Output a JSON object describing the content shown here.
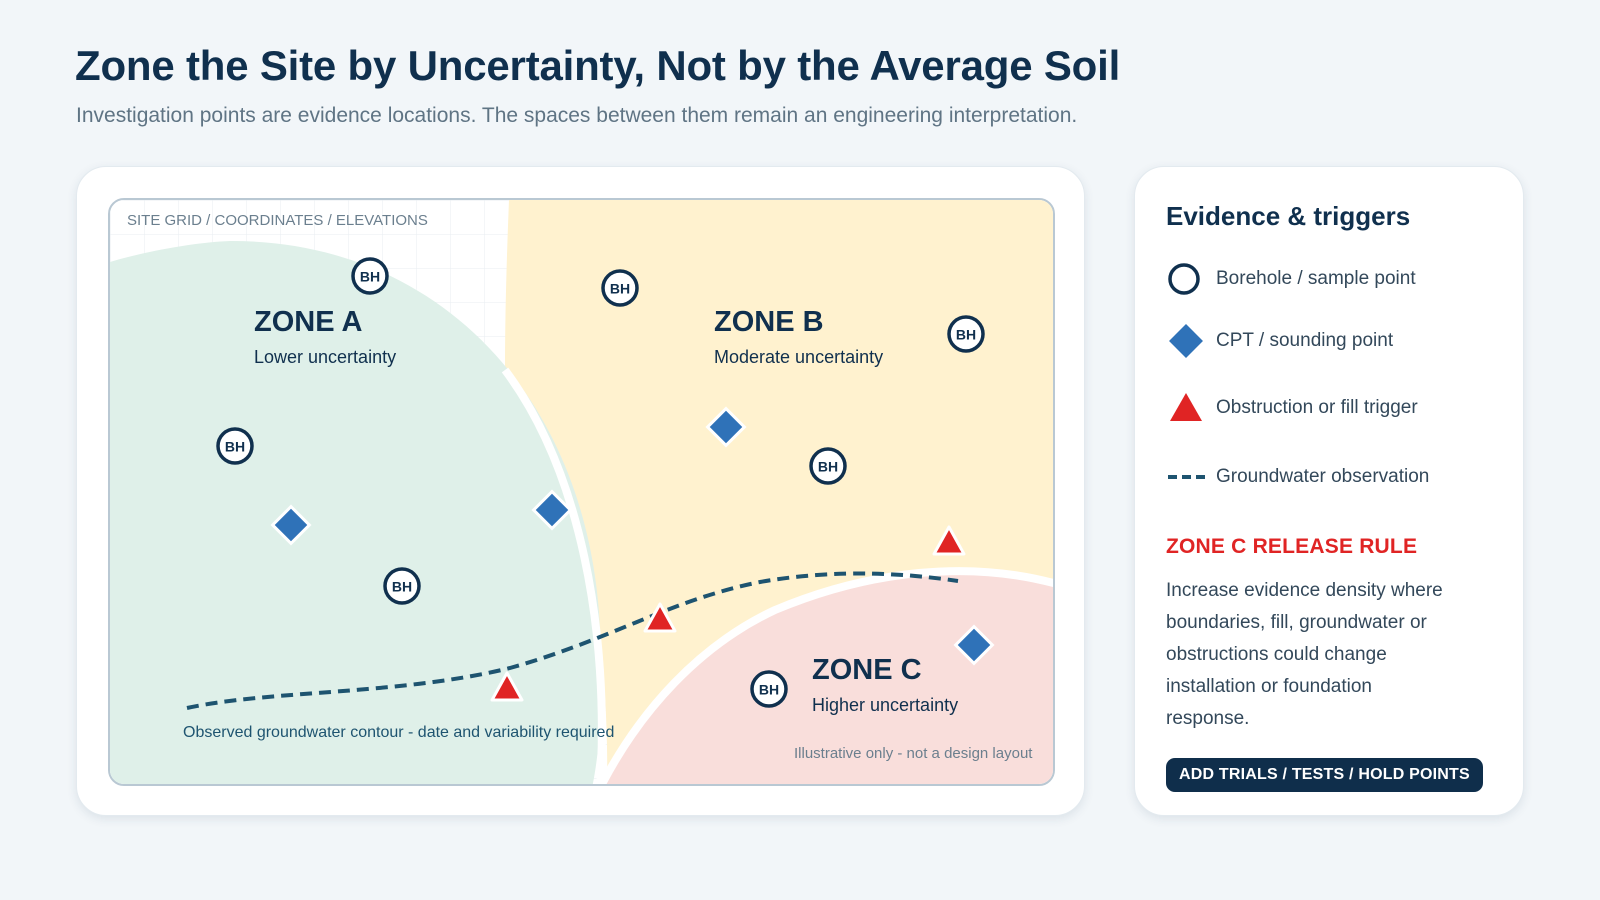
{
  "header": {
    "title": "Zone the Site by Uncertainty, Not by the Average Soil",
    "subtitle": "Investigation points are evidence locations. The spaces between them remain an engineering interpretation."
  },
  "map": {
    "grid_label": "SITE GRID / COORDINATES / ELEVATIONS",
    "zones": [
      {
        "name": "ZONE A",
        "description": "Lower uncertainty",
        "color": "#dff0e9"
      },
      {
        "name": "ZONE B",
        "description": "Moderate uncertainty",
        "color": "#fff2cf"
      },
      {
        "name": "ZONE C",
        "description": "Higher uncertainty",
        "color": "#f9dedb"
      }
    ],
    "borehole_label": "BH",
    "groundwater_caption": "Observed groundwater contour - date and variability required",
    "disclaimer": "Illustrative only - not a design layout",
    "colors": {
      "borehole": "#10304e",
      "cpt": "#2f72b8",
      "trigger": "#e02424",
      "groundwater": "#1e5470"
    }
  },
  "legend": {
    "title": "Evidence & triggers",
    "items": [
      {
        "icon": "circle-icon",
        "label": "Borehole / sample point"
      },
      {
        "icon": "diamond-icon",
        "label": "CPT / sounding point"
      },
      {
        "icon": "triangle-icon",
        "label": "Obstruction or fill trigger"
      },
      {
        "icon": "dashed-line-icon",
        "label": "Groundwater observation"
      }
    ],
    "rule_title": "ZONE C RELEASE RULE",
    "rule_text": "Increase evidence density where boundaries, fill, groundwater or obstructions could change installation or foundation response.",
    "button_label": "ADD TRIALS / TESTS / HOLD POINTS"
  }
}
